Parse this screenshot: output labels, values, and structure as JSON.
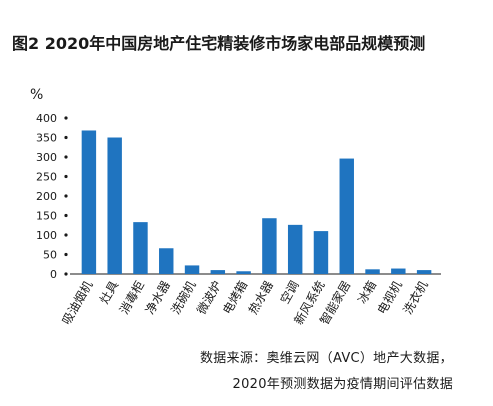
{
  "chart_data": {
    "type": "bar",
    "title": "图2  2020年中国房地产住宅精装修市场家电部品规模预测",
    "ylabel": "%",
    "xlabel": "",
    "ylim": [
      0,
      400
    ],
    "yticks": [
      0,
      50,
      100,
      150,
      200,
      250,
      300,
      350,
      400
    ],
    "categories": [
      "吸油烟机",
      "灶具",
      "消毒柜",
      "净水器",
      "洗碗机",
      "微波炉",
      "电烤箱",
      "热水器",
      "空调",
      "新风系统",
      "智能家居",
      "冰箱",
      "电视机",
      "洗衣机"
    ],
    "values": [
      368,
      350,
      133,
      66,
      22,
      10,
      7,
      143,
      126,
      110,
      296,
      12,
      14,
      10
    ],
    "bar_color": "#1f74c0",
    "grid": false,
    "legend": "none"
  },
  "source": {
    "line1": "数据来源：奥维云网（AVC）地产大数据，",
    "line2": "2020年预测数据为疫情期间评估数据"
  }
}
